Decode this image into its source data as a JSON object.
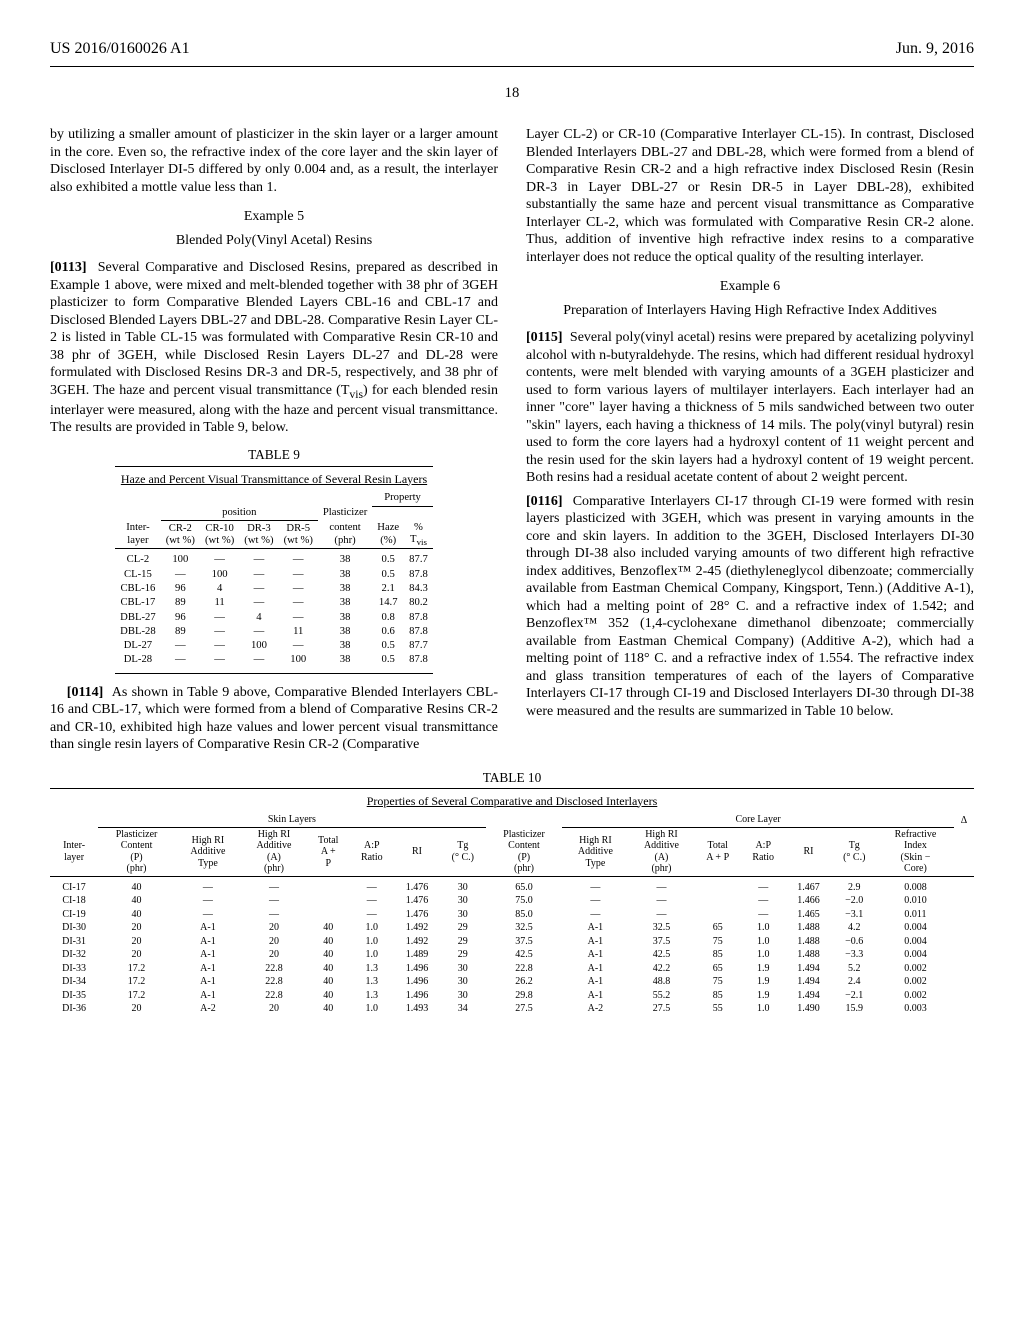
{
  "header": {
    "pub_no": "US 2016/0160026 A1",
    "pub_date": "Jun. 9, 2016",
    "page_no": "18"
  },
  "left_col": {
    "lead_para": "by utilizing a smaller amount of plasticizer in the skin layer or a larger amount in the core. Even so, the refractive index of the core layer and the skin layer of Disclosed Interlayer DI-5 differed by only 0.004 and, as a result, the interlayer also exhibited a mottle value less than 1.",
    "example_label": "Example 5",
    "example_title": "Blended Poly(Vinyl Acetal) Resins",
    "para_0113_num": "[0113]",
    "para_0113": "Several Comparative and Disclosed Resins, prepared as described in Example 1 above, were mixed and melt-blended together with 38 phr of 3GEH plasticizer to form Comparative Blended Layers CBL-16 and CBL-17 and Disclosed Blended Layers DBL-27 and DBL-28. Comparative Resin Layer CL-2 is listed in Table CL-15 was formulated with Comparative Resin CR-10 and 38 phr of 3GEH, while Disclosed Resin Layers DL-27 and DL-28 were formulated with Disclosed Resins DR-3 and DR-5, respectively, and 38 phr of 3GEH. The haze and percent visual transmittance (T",
    "para_0113_tail": ") for each blended resin interlayer were measured, along with the haze and percent visual transmittance. The results are provided in Table 9, below.",
    "tvis_sub": "vis",
    "para_0114_num": "[0114]",
    "para_0114": "As shown in Table 9 above, Comparative Blended Interlayers CBL-16 and CBL-17, which were formed from a blend of Comparative Resins CR-2 and CR-10, exhibited high haze values and lower percent visual transmittance than single resin layers of Comparative Resin CR-2 (Comparative"
  },
  "table9": {
    "label": "TABLE 9",
    "caption": "Haze and Percent Visual Transmittance of Several Resin Layers",
    "group_position": "position",
    "group_property": "Property",
    "group_plasticizer": "Plasticizer",
    "headers": {
      "interlayer": "Inter-\nlayer",
      "cr2": "CR-2\n(wt %)",
      "cr10": "CR-10\n(wt %)",
      "dr3": "DR-3\n(wt %)",
      "dr5": "DR-5\n(wt %)",
      "plast": "content\n(phr)",
      "haze": "Haze\n(%)",
      "tvis": "%\nT",
      "tvis_sub": "vis"
    },
    "rows": [
      {
        "il": "CL-2",
        "cr2": "100",
        "cr10": "—",
        "dr3": "—",
        "dr5": "—",
        "p": "38",
        "h": "0.5",
        "t": "87.7"
      },
      {
        "il": "CL-15",
        "cr2": "—",
        "cr10": "100",
        "dr3": "—",
        "dr5": "—",
        "p": "38",
        "h": "0.5",
        "t": "87.8"
      },
      {
        "il": "CBL-16",
        "cr2": "96",
        "cr10": "4",
        "dr3": "—",
        "dr5": "—",
        "p": "38",
        "h": "2.1",
        "t": "84.3"
      },
      {
        "il": "CBL-17",
        "cr2": "89",
        "cr10": "11",
        "dr3": "—",
        "dr5": "—",
        "p": "38",
        "h": "14.7",
        "t": "80.2"
      },
      {
        "il": "DBL-27",
        "cr2": "96",
        "cr10": "—",
        "dr3": "4",
        "dr5": "—",
        "p": "38",
        "h": "0.8",
        "t": "87.8"
      },
      {
        "il": "DBL-28",
        "cr2": "89",
        "cr10": "—",
        "dr3": "—",
        "dr5": "11",
        "p": "38",
        "h": "0.6",
        "t": "87.8"
      },
      {
        "il": "DL-27",
        "cr2": "—",
        "cr10": "—",
        "dr3": "100",
        "dr5": "—",
        "p": "38",
        "h": "0.5",
        "t": "87.7"
      },
      {
        "il": "DL-28",
        "cr2": "—",
        "cr10": "—",
        "dr3": "—",
        "dr5": "100",
        "p": "38",
        "h": "0.5",
        "t": "87.8"
      }
    ]
  },
  "right_col": {
    "lead_para": "Layer CL-2) or CR-10 (Comparative Interlayer CL-15). In contrast, Disclosed Blended Interlayers DBL-27 and DBL-28, which were formed from a blend of Comparative Resin CR-2 and a high refractive index Disclosed Resin (Resin DR-3 in Layer DBL-27 or Resin DR-5 in Layer DBL-28), exhibited substantially the same haze and percent visual transmittance as Comparative Interlayer CL-2, which was formulated with Comparative Resin CR-2 alone. Thus, addition of inventive high refractive index resins to a comparative interlayer does not reduce the optical quality of the resulting interlayer.",
    "example_label": "Example 6",
    "example_title": "Preparation of Interlayers Having High Refractive Index Additives",
    "para_0115_num": "[0115]",
    "para_0115": "Several poly(vinyl acetal) resins were prepared by acetalizing polyvinyl alcohol with n-butyraldehyde. The resins, which had different residual hydroxyl contents, were melt blended with varying amounts of a 3GEH plasticizer and used to form various layers of multilayer interlayers. Each interlayer had an inner \"core\" layer having a thickness of 5 mils sandwiched between two outer \"skin\" layers, each having a thickness of 14 mils. The poly(vinyl butyral) resin used to form the core layers had a hydroxyl content of 11 weight percent and the resin used for the skin layers had a hydroxyl content of 19 weight percent. Both resins had a residual acetate content of about 2 weight percent.",
    "para_0116_num": "[0116]",
    "para_0116": "Comparative Interlayers CI-17 through CI-19 were formed with resin layers plasticized with 3GEH, which was present in varying amounts in the core and skin layers. In addition to the 3GEH, Disclosed Interlayers DI-30 through DI-38 also included varying amounts of two different high refractive index additives, Benzoflex™ 2-45 (diethyleneglycol dibenzoate; commercially available from Eastman Chemical Company, Kingsport, Tenn.) (Additive A-1), which had a melting point of 28° C. and a refractive index of 1.542; and Benzoflex™ 352 (1,4-cyclohexane dimethanol dibenzoate; commercially available from Eastman Chemical Company) (Additive A-2), which had a melting point of 118° C. and a refractive index of 1.554. The refractive index and glass transition temperatures of each of the layers of Comparative Interlayers CI-17 through CI-19 and Disclosed Interlayers DI-30 through DI-38 were measured and the results are summarized in Table 10 below."
  },
  "table10": {
    "label": "TABLE 10",
    "caption": "Properties of Several Comparative and Disclosed Interlayers",
    "group_skin": "Skin Layers",
    "group_core": "Core Layer",
    "group_delta": "Δ",
    "headers": {
      "interlayer": "Inter-\nlayer",
      "skin_plast": "Plasticizer\nContent\n(P)\n(phr)",
      "skin_add_type": "High RI\nAdditive\nType",
      "skin_add_a": "High RI\nAdditive\n(A)\n(phr)",
      "skin_total": "Total\nA +\nP",
      "skin_ratio": "A:P\nRatio",
      "skin_ri": "RI",
      "skin_tg": "Tg\n(° C.)",
      "core_plast": "Plasticizer\nContent\n(P)\n(phr)",
      "core_add_type": "High RI\nAdditive\nType",
      "core_add_a": "High RI\nAdditive\n(A)\n(phr)",
      "core_total": "Total\nA + P",
      "core_ratio": "A:P\nRatio",
      "core_ri": "RI",
      "core_tg": "Tg\n(° C.)",
      "delta": "Refractive\nIndex\n(Skin −\nCore)"
    },
    "rows": [
      {
        "il": "CI-17",
        "sp": "40",
        "sat": "—",
        "sa": "—",
        "st": "",
        "sr": "—",
        "sri": "1.476",
        "stg": "30",
        "cp": "65.0",
        "cat": "—",
        "ca": "—",
        "ct": "",
        "cr": "—",
        "cri": "1.467",
        "ctg": "2.9",
        "d": "0.008"
      },
      {
        "il": "CI-18",
        "sp": "40",
        "sat": "—",
        "sa": "—",
        "st": "",
        "sr": "—",
        "sri": "1.476",
        "stg": "30",
        "cp": "75.0",
        "cat": "—",
        "ca": "—",
        "ct": "",
        "cr": "—",
        "cri": "1.466",
        "ctg": "−2.0",
        "d": "0.010"
      },
      {
        "il": "CI-19",
        "sp": "40",
        "sat": "—",
        "sa": "—",
        "st": "",
        "sr": "—",
        "sri": "1.476",
        "stg": "30",
        "cp": "85.0",
        "cat": "—",
        "ca": "—",
        "ct": "",
        "cr": "—",
        "cri": "1.465",
        "ctg": "−3.1",
        "d": "0.011"
      },
      {
        "il": "DI-30",
        "sp": "20",
        "sat": "A-1",
        "sa": "20",
        "st": "40",
        "sr": "1.0",
        "sri": "1.492",
        "stg": "29",
        "cp": "32.5",
        "cat": "A-1",
        "ca": "32.5",
        "ct": "65",
        "cr": "1.0",
        "cri": "1.488",
        "ctg": "4.2",
        "d": "0.004"
      },
      {
        "il": "DI-31",
        "sp": "20",
        "sat": "A-1",
        "sa": "20",
        "st": "40",
        "sr": "1.0",
        "sri": "1.492",
        "stg": "29",
        "cp": "37.5",
        "cat": "A-1",
        "ca": "37.5",
        "ct": "75",
        "cr": "1.0",
        "cri": "1.488",
        "ctg": "−0.6",
        "d": "0.004"
      },
      {
        "il": "DI-32",
        "sp": "20",
        "sat": "A-1",
        "sa": "20",
        "st": "40",
        "sr": "1.0",
        "sri": "1.489",
        "stg": "29",
        "cp": "42.5",
        "cat": "A-1",
        "ca": "42.5",
        "ct": "85",
        "cr": "1.0",
        "cri": "1.488",
        "ctg": "−3.3",
        "d": "0.004"
      },
      {
        "il": "DI-33",
        "sp": "17.2",
        "sat": "A-1",
        "sa": "22.8",
        "st": "40",
        "sr": "1.3",
        "sri": "1.496",
        "stg": "30",
        "cp": "22.8",
        "cat": "A-1",
        "ca": "42.2",
        "ct": "65",
        "cr": "1.9",
        "cri": "1.494",
        "ctg": "5.2",
        "d": "0.002"
      },
      {
        "il": "DI-34",
        "sp": "17.2",
        "sat": "A-1",
        "sa": "22.8",
        "st": "40",
        "sr": "1.3",
        "sri": "1.496",
        "stg": "30",
        "cp": "26.2",
        "cat": "A-1",
        "ca": "48.8",
        "ct": "75",
        "cr": "1.9",
        "cri": "1.494",
        "ctg": "2.4",
        "d": "0.002"
      },
      {
        "il": "DI-35",
        "sp": "17.2",
        "sat": "A-1",
        "sa": "22.8",
        "st": "40",
        "sr": "1.3",
        "sri": "1.496",
        "stg": "30",
        "cp": "29.8",
        "cat": "A-1",
        "ca": "55.2",
        "ct": "85",
        "cr": "1.9",
        "cri": "1.494",
        "ctg": "−2.1",
        "d": "0.002"
      },
      {
        "il": "DI-36",
        "sp": "20",
        "sat": "A-2",
        "sa": "20",
        "st": "40",
        "sr": "1.0",
        "sri": "1.493",
        "stg": "34",
        "cp": "27.5",
        "cat": "A-2",
        "ca": "27.5",
        "ct": "55",
        "cr": "1.0",
        "cri": "1.490",
        "ctg": "15.9",
        "d": "0.003"
      }
    ]
  }
}
